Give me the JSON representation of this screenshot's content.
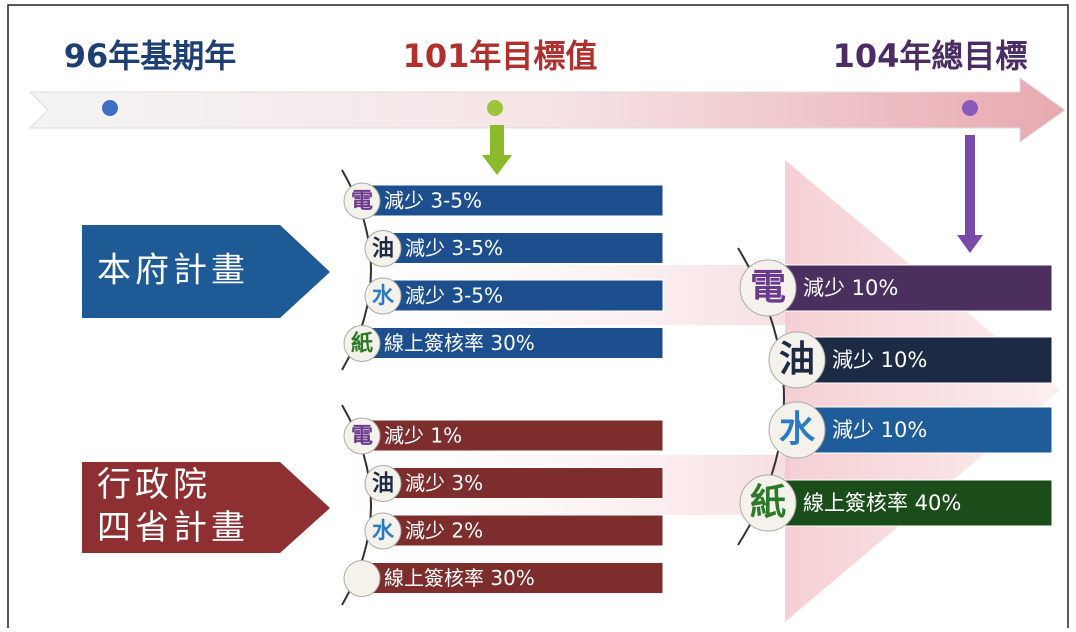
{
  "timeline": {
    "labels": [
      "96年基期年",
      "101年目標值",
      "104年總目標"
    ]
  },
  "groups": [
    {
      "title_lines": [
        "本府計畫"
      ],
      "items": [
        {
          "icon": "電",
          "text": "減少 3-5%"
        },
        {
          "icon": "油",
          "text": "減少 3-5%"
        },
        {
          "icon": "水",
          "text": "減少 3-5%"
        },
        {
          "icon": "紙",
          "text": "線上簽核率 30%"
        }
      ]
    },
    {
      "title_lines": [
        "行政院",
        "四省計畫"
      ],
      "items": [
        {
          "icon": "電",
          "text": "減少 1%"
        },
        {
          "icon": "油",
          "text": "減少 3%"
        },
        {
          "icon": "水",
          "text": "減少 2%"
        },
        {
          "text": "線上簽核率 30%"
        }
      ]
    }
  ],
  "goals": {
    "items": [
      {
        "icon": "電",
        "text": "減少 10%"
      },
      {
        "icon": "油",
        "text": "減少 10%"
      },
      {
        "icon": "水",
        "text": "減少 10%"
      },
      {
        "icon": "紙",
        "text": "線上簽核率 40%"
      }
    ]
  }
}
